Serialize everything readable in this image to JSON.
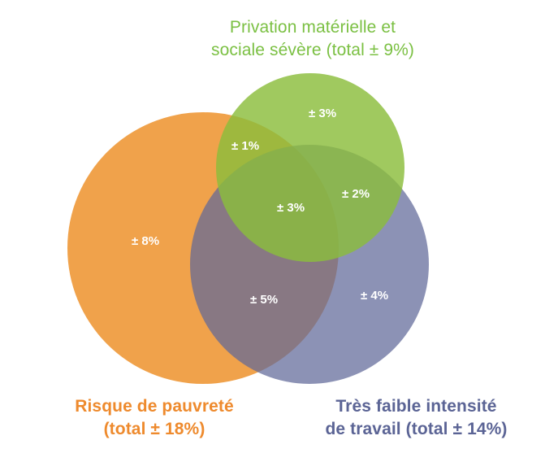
{
  "sets": {
    "green": {
      "line1": "Privation matérielle et",
      "line2": "sociale sévère (total ± 9%)",
      "color": "#8bbd3c"
    },
    "orange": {
      "line1": "Risque de pauvreté",
      "line2": "(total ± 18%)",
      "color": "#ef9a3c"
    },
    "blue": {
      "line1": "Très faible intensité",
      "line2": "de travail (total ± 14%)",
      "color": "#6a7098"
    }
  },
  "regions": {
    "green_only": "± 3%",
    "orange_green": "± 1%",
    "green_blue": "± 2%",
    "all_three": "± 3%",
    "orange_only": "± 8%",
    "orange_blue": "± 5%",
    "blue_only": "± 4%"
  }
}
